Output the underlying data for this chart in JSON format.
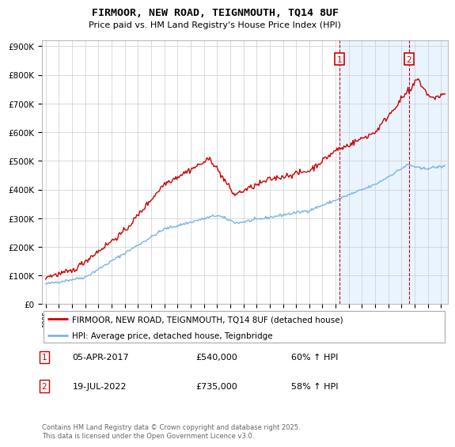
{
  "title": "FIRMOOR, NEW ROAD, TEIGNMOUTH, TQ14 8UF",
  "subtitle": "Price paid vs. HM Land Registry's House Price Index (HPI)",
  "yticks": [
    0,
    100000,
    200000,
    300000,
    400000,
    500000,
    600000,
    700000,
    800000,
    900000
  ],
  "xlim_start": 1994.7,
  "xlim_end": 2025.5,
  "sale1_date": 2017.27,
  "sale1_price": 540000,
  "sale2_date": 2022.55,
  "sale2_price": 735000,
  "hpi_line_color": "#7ab4e8",
  "house_line_color": "#cc0000",
  "sale_marker_color": "#cc0000",
  "grid_color": "#cccccc",
  "background_color": "#ffffff",
  "legend_label_house": "FIRMOOR, NEW ROAD, TEIGNMOUTH, TQ14 8UF (detached house)",
  "legend_label_hpi": "HPI: Average price, detached house, Teignbridge",
  "footnote": "Contains HM Land Registry data © Crown copyright and database right 2025.\nThis data is licensed under the Open Government Licence v3.0.",
  "shaded_region_color": "#ddeeff"
}
